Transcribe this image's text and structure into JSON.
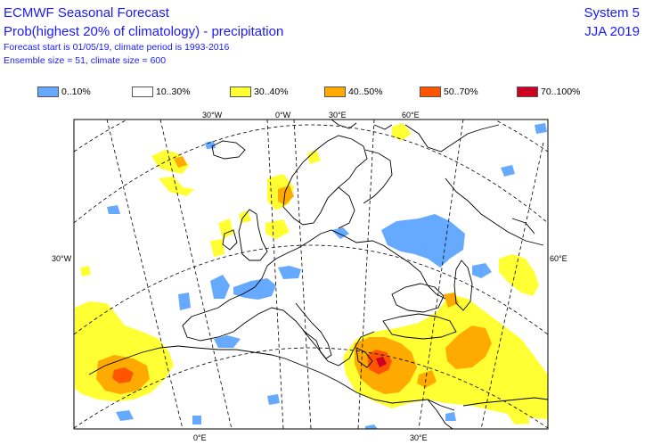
{
  "header": {
    "title": "ECMWF Seasonal Forecast",
    "subtitle": "Prob(highest 20% of climatology) - precipitation",
    "line3": "Forecast start is 01/05/19, climate period is 1993-2016",
    "line4": "Ensemble size = 51, climate size = 600",
    "system": "System 5",
    "season": "JJA 2019"
  },
  "legend": [
    {
      "label": "0..10%",
      "color": "#66aaff"
    },
    {
      "label": "10..30%",
      "color": "#ffffff"
    },
    {
      "label": "30..40%",
      "color": "#ffff33"
    },
    {
      "label": "40..50%",
      "color": "#ffaa00"
    },
    {
      "label": "50..70%",
      "color": "#ff5500"
    },
    {
      "label": "70..100%",
      "color": "#cc0022"
    }
  ],
  "axis_labels": {
    "top": [
      "30°W",
      "0°W",
      "30°E",
      "60°E"
    ],
    "left": "30°W",
    "right": "60°E",
    "bottom": [
      "0°E",
      "30°E"
    ]
  }
}
